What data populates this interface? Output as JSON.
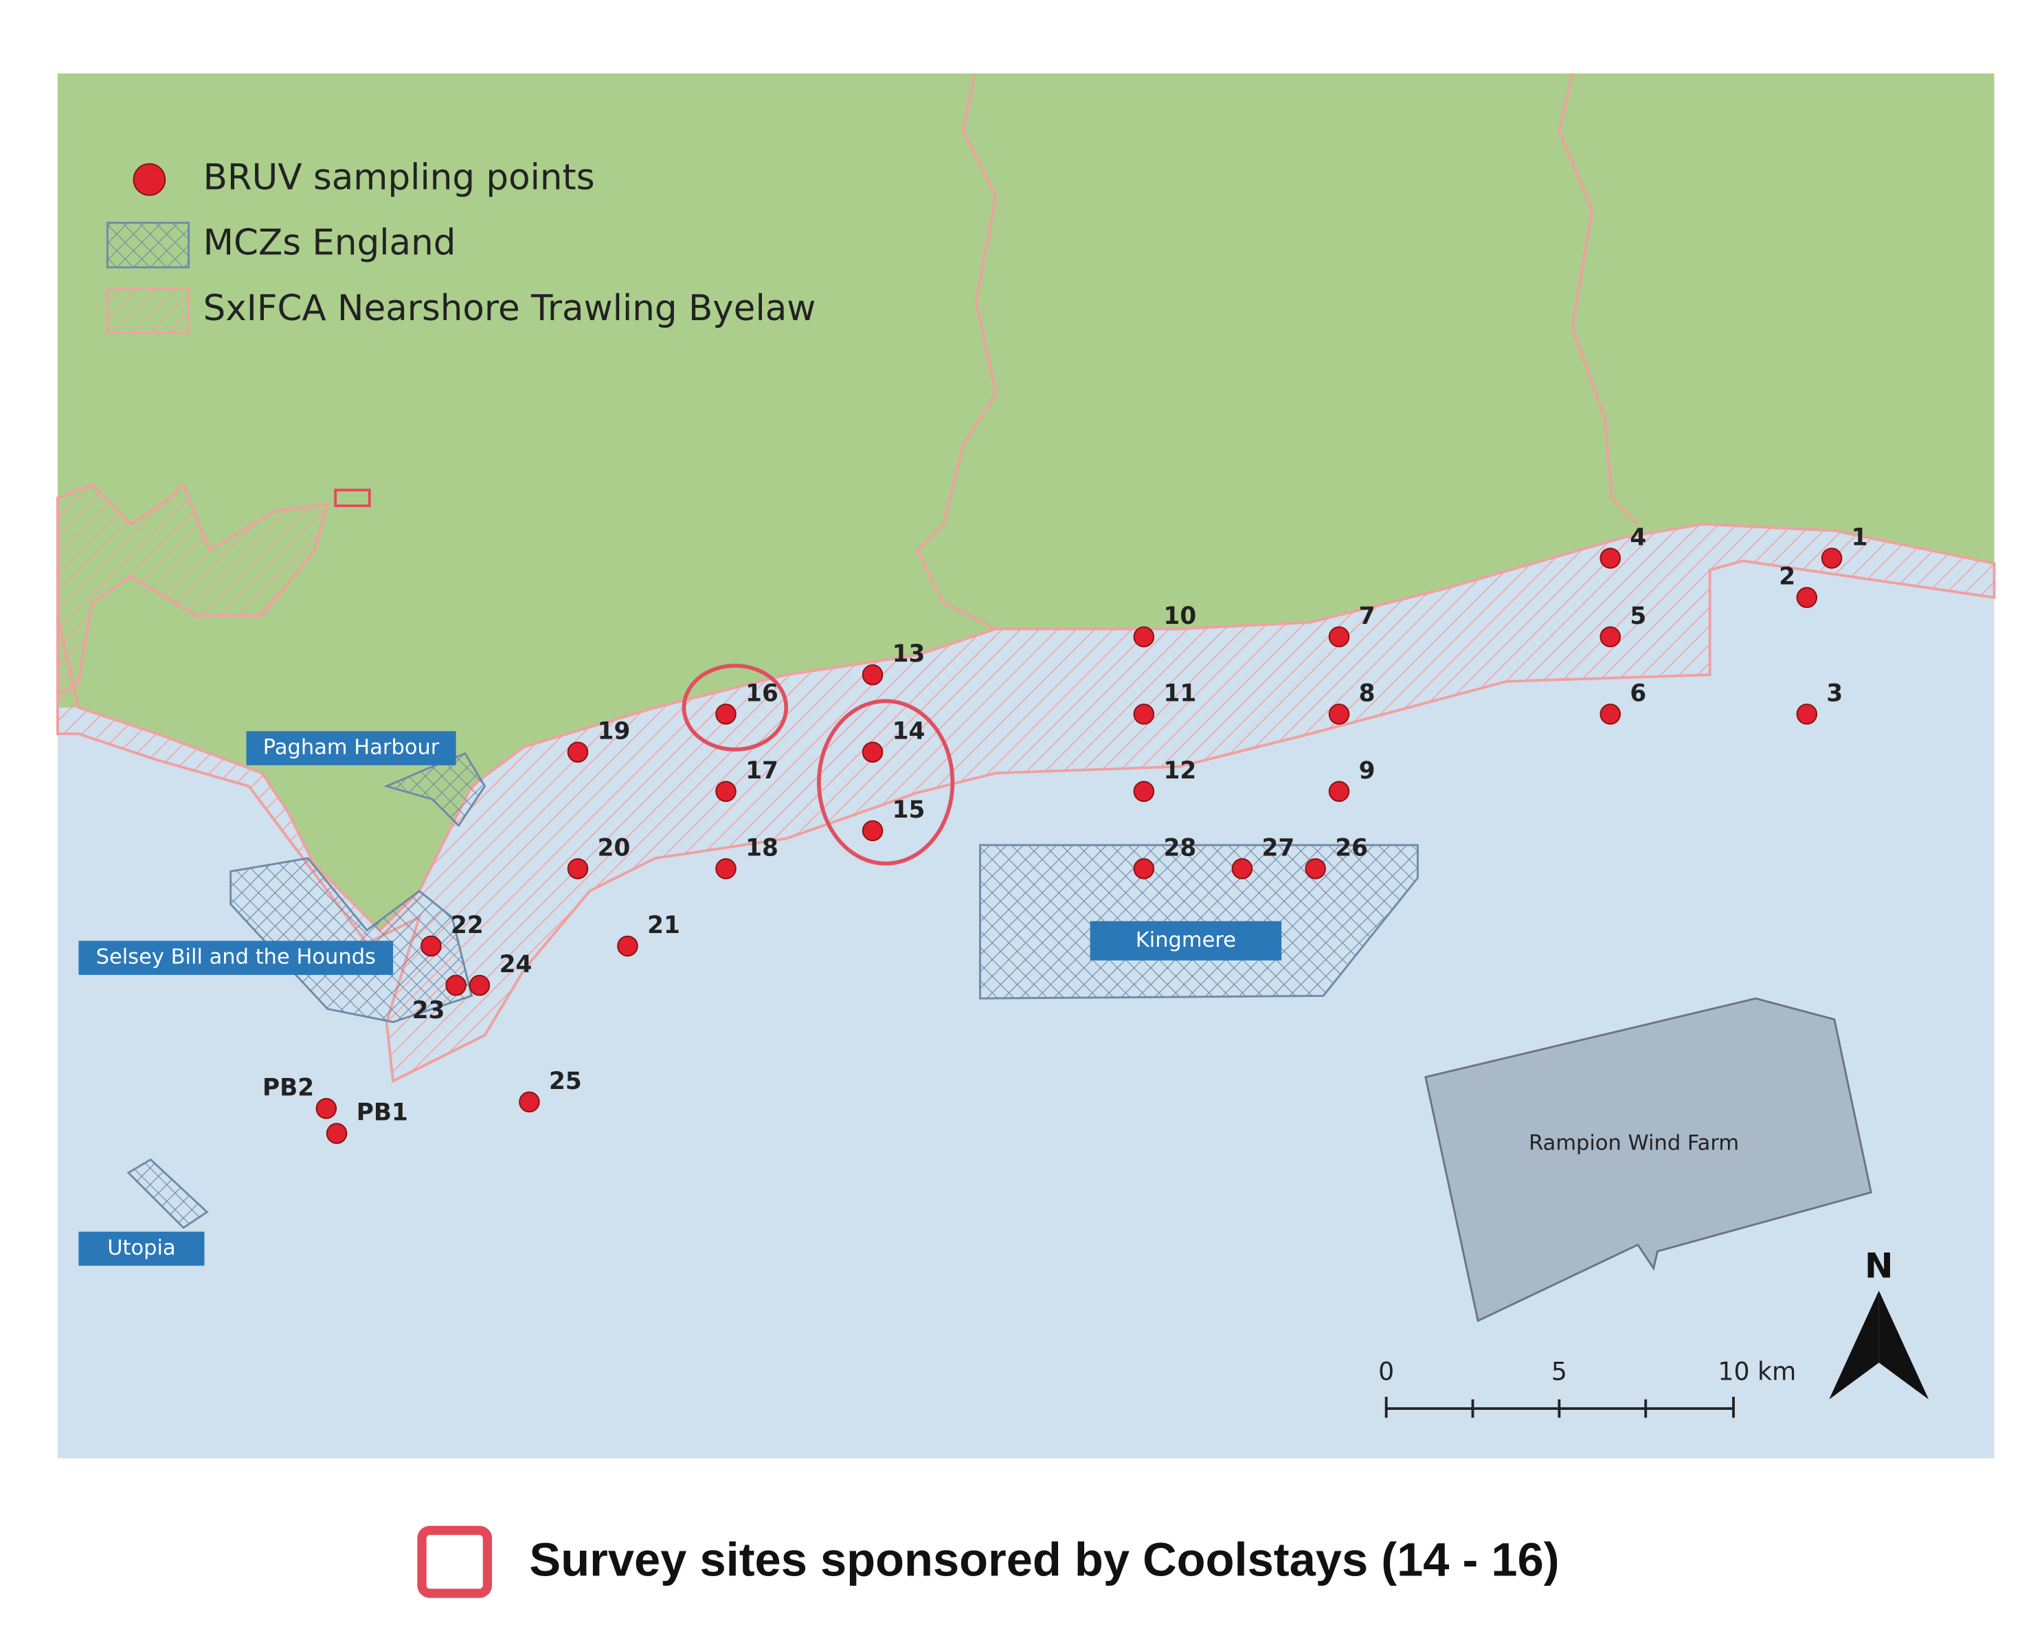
{
  "legend": {
    "items": [
      "BRUV sampling points",
      "MCZs England",
      "SxIFCA Nearshore Trawling Byelaw"
    ]
  },
  "areas": {
    "pagham": "Pagham Harbour",
    "selsey": "Selsey Bill and the Hounds",
    "kingmere": "Kingmere",
    "utopia": "Utopia",
    "rampion": "Rampion Wind Farm"
  },
  "points": [
    "1",
    "2",
    "3",
    "4",
    "5",
    "6",
    "7",
    "8",
    "9",
    "10",
    "11",
    "12",
    "13",
    "14",
    "15",
    "16",
    "17",
    "18",
    "19",
    "20",
    "21",
    "22",
    "23",
    "24",
    "25",
    "26",
    "27",
    "28",
    "PB2",
    "PB1"
  ],
  "scale_bar": {
    "labels": [
      "0",
      "5",
      "10 km"
    ]
  },
  "north": "N",
  "caption": "Survey sites sponsored by Coolstays (14 - 16)"
}
